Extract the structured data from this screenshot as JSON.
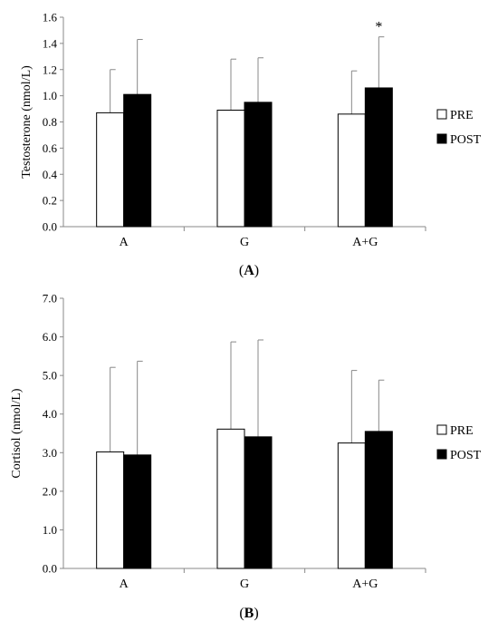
{
  "chart_data": [
    {
      "type": "bar",
      "panel_label": {
        "open": "(",
        "letter": "A",
        "close": ")"
      },
      "ylabel": "Testosterone (nmol/L)",
      "categories": [
        "A",
        "G",
        "A+G"
      ],
      "ylim": [
        0,
        1.6
      ],
      "yticks": [
        "0.0",
        "0.2",
        "0.4",
        "0.6",
        "0.8",
        "1.0",
        "1.2",
        "1.4",
        "1.6"
      ],
      "series": [
        {
          "name": "PRE",
          "color": "#ffffff",
          "values": [
            0.87,
            0.89,
            0.86
          ],
          "error": [
            0.33,
            0.39,
            0.33
          ]
        },
        {
          "name": "POST",
          "color": "#000000",
          "values": [
            1.01,
            0.95,
            1.06
          ],
          "error": [
            0.42,
            0.34,
            0.39
          ]
        }
      ],
      "annotations": [
        {
          "text": "*",
          "series": 1,
          "category": 2
        }
      ],
      "legend": "right",
      "grid": false
    },
    {
      "type": "bar",
      "panel_label": {
        "open": "(",
        "letter": "B",
        "close": ")"
      },
      "ylabel": "Cortisol (nmol/L)",
      "categories": [
        "A",
        "G",
        "A+G"
      ],
      "ylim": [
        0,
        7
      ],
      "yticks": [
        "0.0",
        "1.0",
        "2.0",
        "3.0",
        "4.0",
        "5.0",
        "6.0",
        "7.0"
      ],
      "series": [
        {
          "name": "PRE",
          "color": "#ffffff",
          "values": [
            3.02,
            3.61,
            3.25
          ],
          "error": [
            2.19,
            2.26,
            1.88
          ]
        },
        {
          "name": "POST",
          "color": "#000000",
          "values": [
            2.94,
            3.41,
            3.55
          ],
          "error": [
            2.43,
            2.51,
            1.33
          ]
        }
      ],
      "annotations": [],
      "legend": "right",
      "grid": false
    }
  ]
}
